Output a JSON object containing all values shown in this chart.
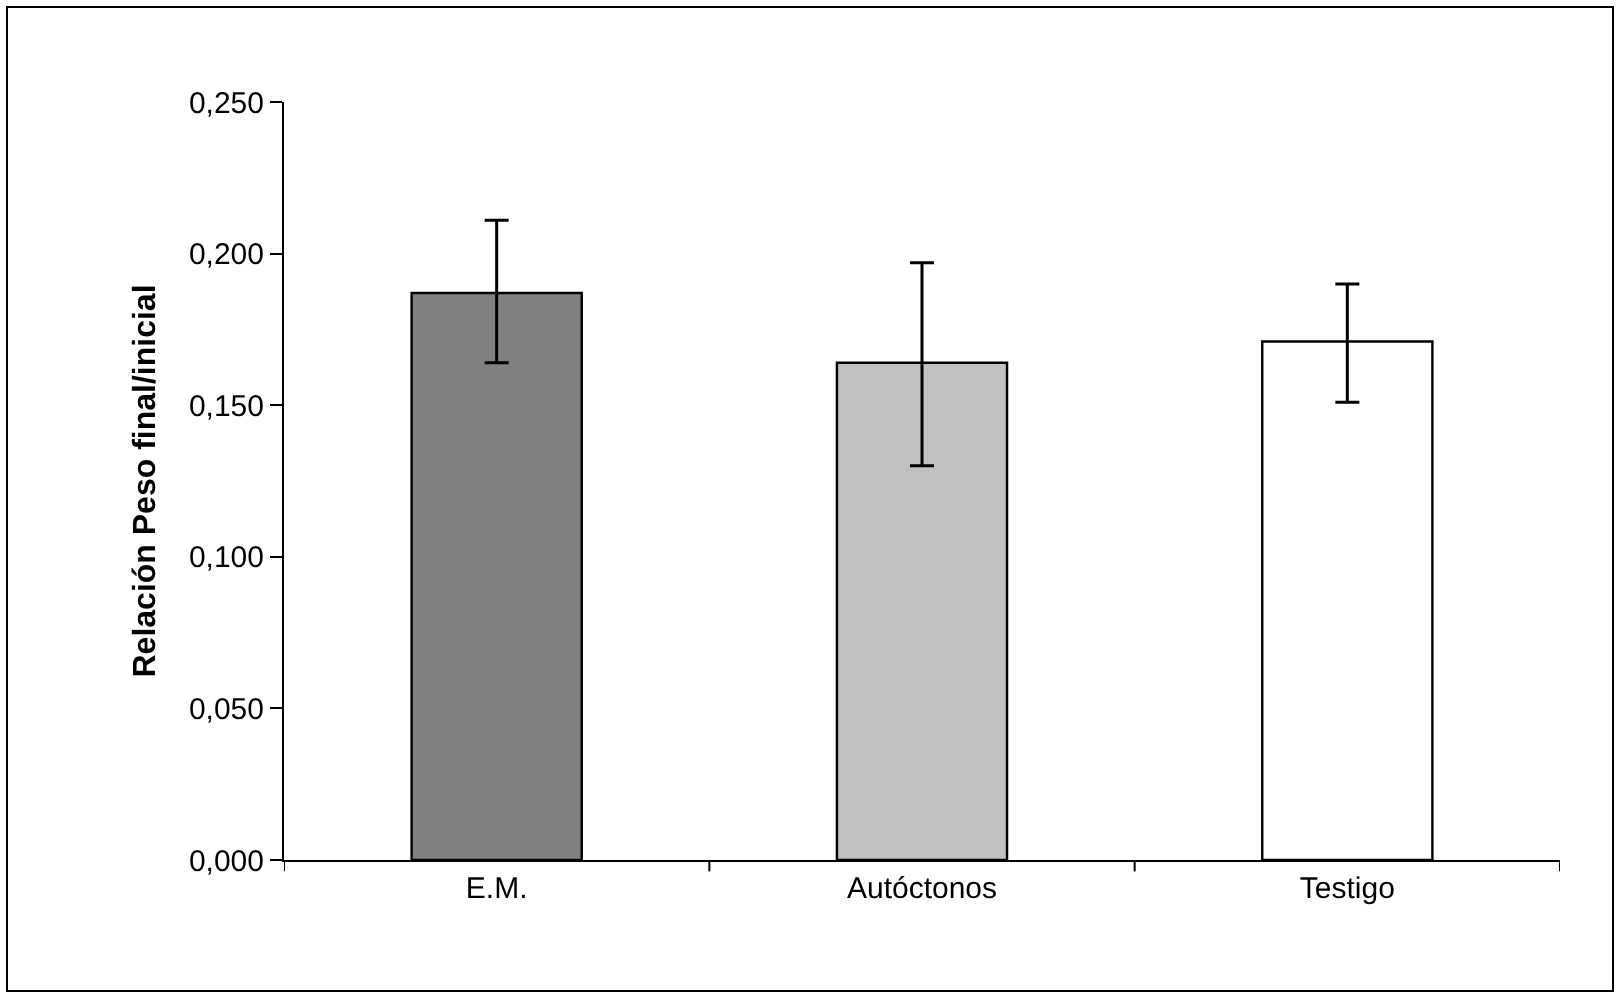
{
  "chart_data": {
    "type": "bar",
    "ylabel": "Relación Peso final/inicial",
    "categories": [
      "E.M.",
      "Autóctonos",
      "Testigo"
    ],
    "values": [
      0.187,
      0.164,
      0.171
    ],
    "colors": [
      "#808080",
      "#c0c0c0",
      "#ffffff"
    ],
    "errors": [
      [
        0.164,
        0.211
      ],
      [
        0.13,
        0.197
      ],
      [
        0.151,
        0.19
      ]
    ],
    "ylim": [
      0,
      0.25
    ],
    "yticks": [
      {
        "value": 0,
        "label": "0,000"
      },
      {
        "value": 0.05,
        "label": "0,050"
      },
      {
        "value": 0.1,
        "label": "0,100"
      },
      {
        "value": 0.15,
        "label": "0,150"
      },
      {
        "value": 0.2,
        "label": "0,200"
      },
      {
        "value": 0.25,
        "label": "0,250"
      }
    ],
    "grid": false
  }
}
